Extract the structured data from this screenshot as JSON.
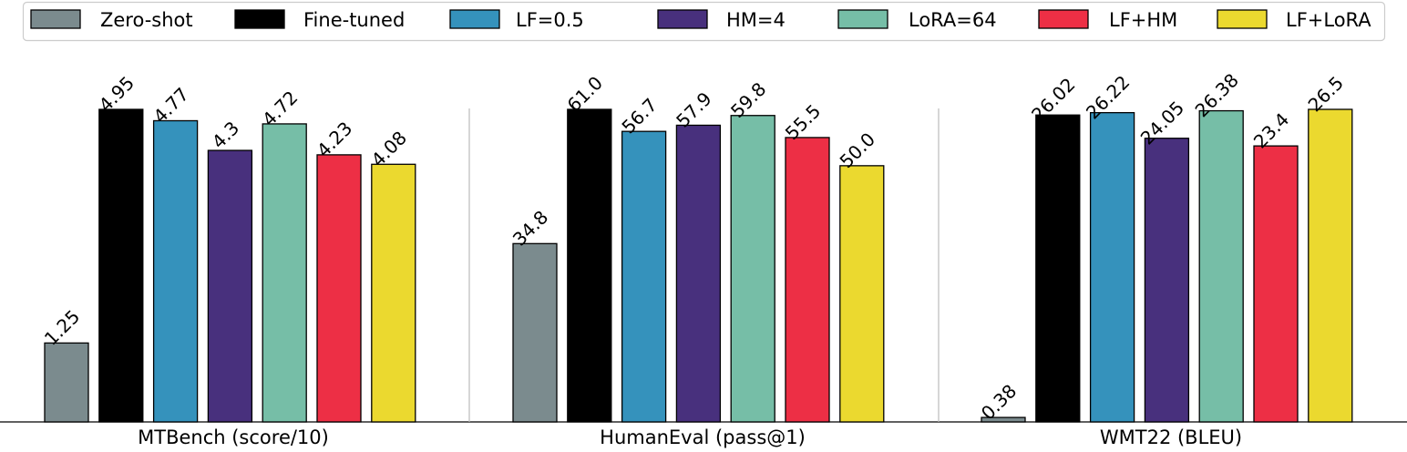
{
  "chart_data": {
    "type": "bar",
    "legend": {
      "placement": "top",
      "entries": [
        {
          "name": "Zero-shot",
          "color": "#7b8b8e"
        },
        {
          "name": "Fine-tuned",
          "color": "#000000"
        },
        {
          "name": "LF=0.5",
          "color": "#3592bc"
        },
        {
          "name": "HM=4",
          "color": "#48307d"
        },
        {
          "name": "LoRA=64",
          "color": "#76bea7"
        },
        {
          "name": "LF+HM",
          "color": "#ed2f45"
        },
        {
          "name": "LF+LoRA",
          "color": "#ebd92f"
        }
      ]
    },
    "grid": false,
    "groups": [
      {
        "label": "MTBench (score/10)",
        "ylim": [
          0,
          4.95
        ],
        "values": [
          1.25,
          4.95,
          4.77,
          4.3,
          4.72,
          4.23,
          4.08
        ],
        "value_labels": [
          "1.25",
          "4.95",
          "4.77",
          "4.3",
          "4.72",
          "4.23",
          "4.08"
        ]
      },
      {
        "label": "HumanEval (pass@1)",
        "ylim": [
          0,
          61.0
        ],
        "values": [
          34.8,
          61.0,
          56.7,
          57.9,
          59.8,
          55.5,
          50.0
        ],
        "value_labels": [
          "34.8",
          "61.0",
          "56.7",
          "57.9",
          "59.8",
          "55.5",
          "50.0"
        ]
      },
      {
        "label": "WMT22 (BLEU)",
        "ylim": [
          0,
          26.5
        ],
        "values": [
          0.38,
          26.02,
          26.22,
          24.05,
          26.38,
          23.4,
          26.5
        ],
        "value_labels": [
          "0.38",
          "26.02",
          "26.22",
          "24.05",
          "26.38",
          "23.4",
          "26.5"
        ]
      }
    ]
  }
}
